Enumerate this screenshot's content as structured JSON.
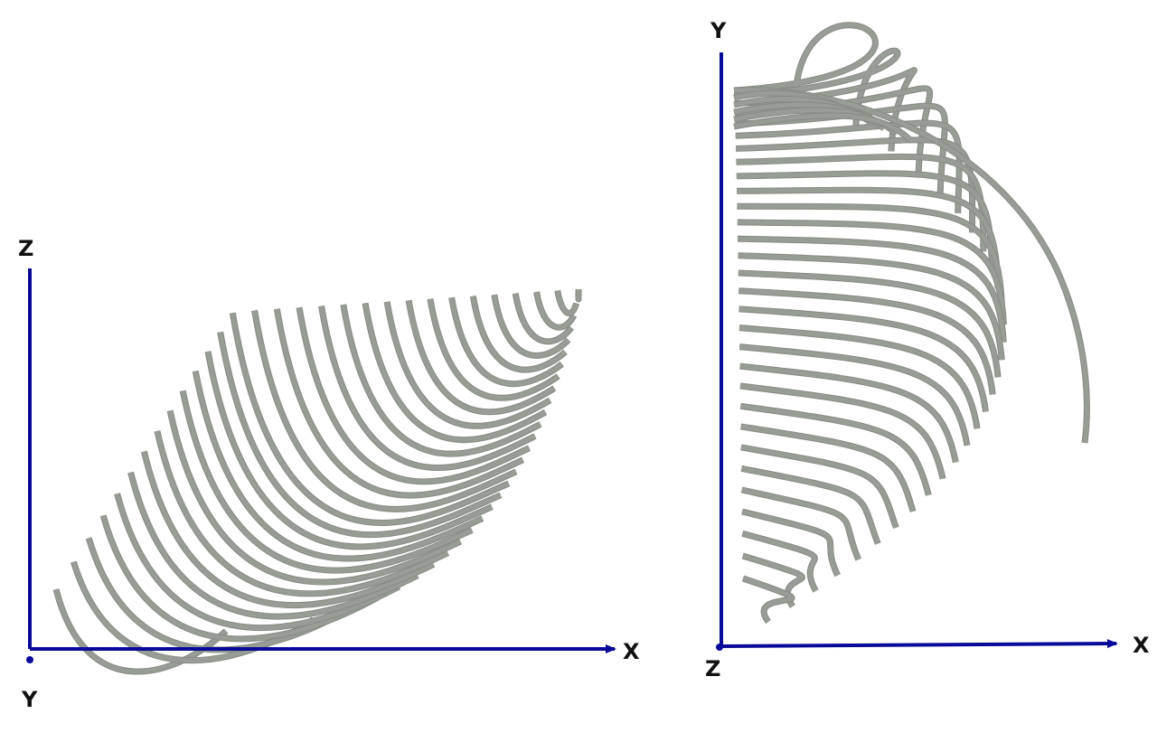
{
  "colors": {
    "axis": "#0a0a9a",
    "curve": "#979d94",
    "curve_edge": "#868b83",
    "background": "#ffffff"
  },
  "left_view": {
    "axis_labels": {
      "vertical": "Z",
      "horizontal": "X",
      "depth": "Y"
    }
  },
  "right_view": {
    "axis_labels": {
      "vertical": "Y",
      "horizontal": "X",
      "depth": "Z"
    }
  }
}
